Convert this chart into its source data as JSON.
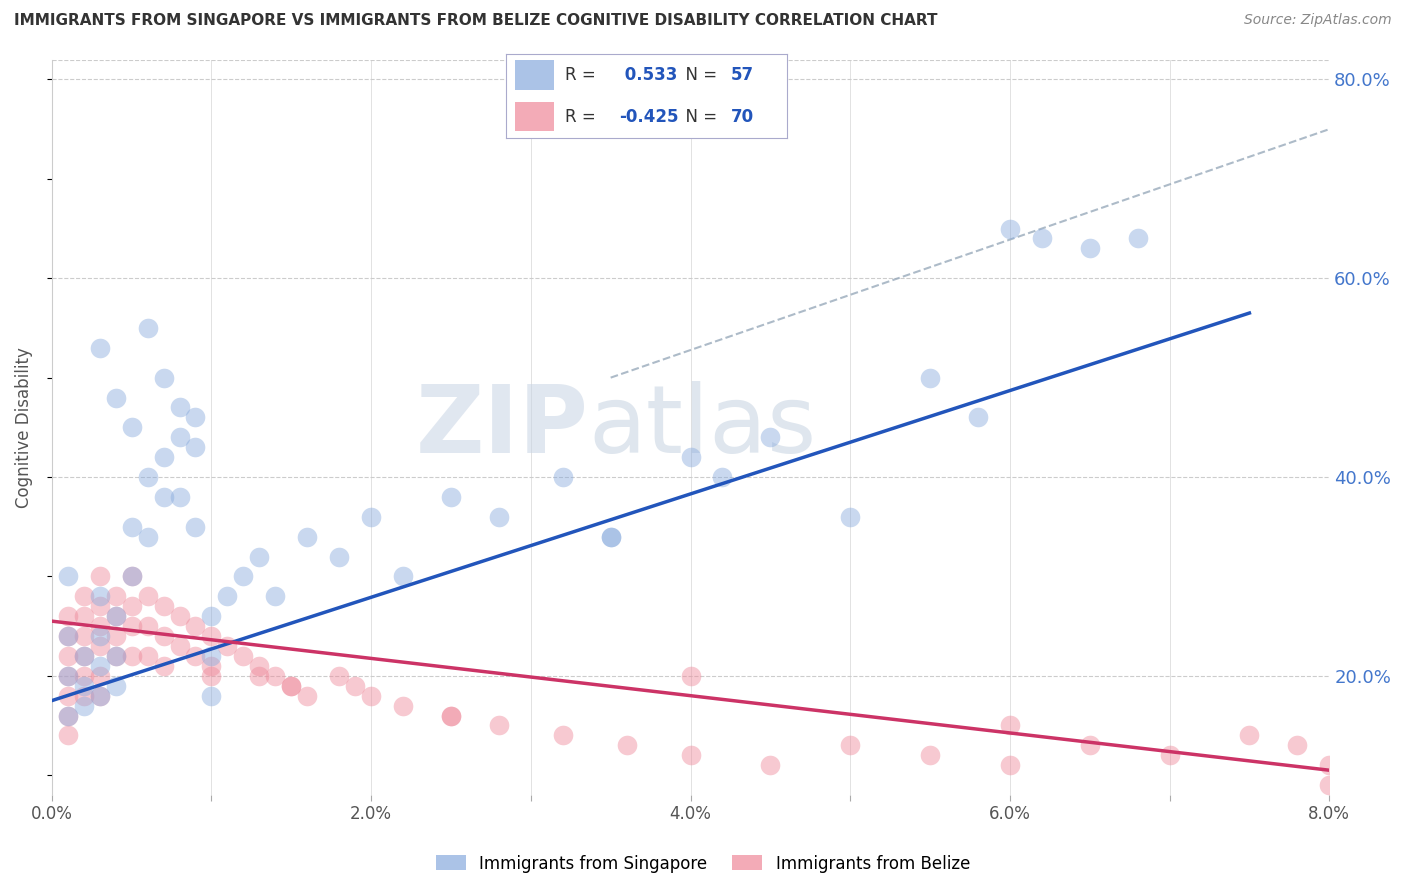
{
  "title": "IMMIGRANTS FROM SINGAPORE VS IMMIGRANTS FROM BELIZE COGNITIVE DISABILITY CORRELATION CHART",
  "source": "Source: ZipAtlas.com",
  "ylabel": "Cognitive Disability",
  "xlim": [
    0.0,
    0.08
  ],
  "ylim": [
    0.08,
    0.82
  ],
  "yticks": [
    0.2,
    0.4,
    0.6,
    0.8
  ],
  "yticklabels": [
    "20.0%",
    "40.0%",
    "60.0%",
    "80.0%"
  ],
  "xtick_vals": [
    0.0,
    0.01,
    0.02,
    0.03,
    0.04,
    0.05,
    0.06,
    0.07,
    0.08
  ],
  "xtick_labels": [
    "0.0%",
    "",
    "2.0%",
    "",
    "4.0%",
    "",
    "6.0%",
    "",
    "8.0%"
  ],
  "grid_color": "#cccccc",
  "background_color": "#ffffff",
  "singapore_color": "#88aadd",
  "belize_color": "#ee8899",
  "singapore_line_color": "#2255bb",
  "belize_line_color": "#cc3366",
  "dashed_line_color": "#99aabb",
  "singapore_R": 0.533,
  "singapore_N": 57,
  "belize_R": -0.425,
  "belize_N": 70,
  "legend_label_singapore": "Immigrants from Singapore",
  "legend_label_belize": "Immigrants from Belize",
  "watermark_zip": "ZIP",
  "watermark_atlas": "atlas",
  "sg_line_x0": 0.0,
  "sg_line_y0": 0.175,
  "sg_line_x1": 0.075,
  "sg_line_y1": 0.565,
  "bz_line_x0": 0.0,
  "bz_line_y0": 0.255,
  "bz_line_x1": 0.08,
  "bz_line_y1": 0.105,
  "dash_line_x0": 0.035,
  "dash_line_y0": 0.5,
  "dash_line_x1": 0.08,
  "dash_line_y1": 0.75,
  "singapore_x": [
    0.001,
    0.001,
    0.001,
    0.001,
    0.002,
    0.002,
    0.002,
    0.003,
    0.003,
    0.003,
    0.003,
    0.004,
    0.004,
    0.004,
    0.005,
    0.005,
    0.006,
    0.006,
    0.007,
    0.007,
    0.008,
    0.008,
    0.009,
    0.009,
    0.01,
    0.01,
    0.01,
    0.011,
    0.012,
    0.013,
    0.014,
    0.016,
    0.018,
    0.02,
    0.022,
    0.025,
    0.028,
    0.032,
    0.035,
    0.04,
    0.042,
    0.045,
    0.05,
    0.055,
    0.058,
    0.062,
    0.065,
    0.068,
    0.003,
    0.004,
    0.005,
    0.006,
    0.007,
    0.008,
    0.009,
    0.035,
    0.06
  ],
  "singapore_y": [
    0.3,
    0.24,
    0.2,
    0.16,
    0.22,
    0.19,
    0.17,
    0.28,
    0.24,
    0.21,
    0.18,
    0.26,
    0.22,
    0.19,
    0.35,
    0.3,
    0.4,
    0.34,
    0.42,
    0.38,
    0.44,
    0.38,
    0.46,
    0.35,
    0.26,
    0.22,
    0.18,
    0.28,
    0.3,
    0.32,
    0.28,
    0.34,
    0.32,
    0.36,
    0.3,
    0.38,
    0.36,
    0.4,
    0.34,
    0.42,
    0.4,
    0.44,
    0.36,
    0.5,
    0.46,
    0.64,
    0.63,
    0.64,
    0.53,
    0.48,
    0.45,
    0.55,
    0.5,
    0.47,
    0.43,
    0.34,
    0.65
  ],
  "belize_x": [
    0.001,
    0.001,
    0.001,
    0.001,
    0.001,
    0.001,
    0.001,
    0.002,
    0.002,
    0.002,
    0.002,
    0.002,
    0.002,
    0.003,
    0.003,
    0.003,
    0.003,
    0.003,
    0.003,
    0.004,
    0.004,
    0.004,
    0.004,
    0.005,
    0.005,
    0.005,
    0.005,
    0.006,
    0.006,
    0.006,
    0.007,
    0.007,
    0.007,
    0.008,
    0.008,
    0.009,
    0.009,
    0.01,
    0.01,
    0.011,
    0.012,
    0.013,
    0.014,
    0.015,
    0.016,
    0.018,
    0.019,
    0.02,
    0.022,
    0.025,
    0.028,
    0.032,
    0.036,
    0.04,
    0.045,
    0.05,
    0.055,
    0.06,
    0.065,
    0.07,
    0.075,
    0.078,
    0.08,
    0.08,
    0.06,
    0.04,
    0.025,
    0.015,
    0.013,
    0.01
  ],
  "belize_y": [
    0.26,
    0.24,
    0.22,
    0.2,
    0.18,
    0.16,
    0.14,
    0.28,
    0.26,
    0.24,
    0.22,
    0.2,
    0.18,
    0.3,
    0.27,
    0.25,
    0.23,
    0.2,
    0.18,
    0.28,
    0.26,
    0.24,
    0.22,
    0.3,
    0.27,
    0.25,
    0.22,
    0.28,
    0.25,
    0.22,
    0.27,
    0.24,
    0.21,
    0.26,
    0.23,
    0.25,
    0.22,
    0.24,
    0.2,
    0.23,
    0.22,
    0.21,
    0.2,
    0.19,
    0.18,
    0.2,
    0.19,
    0.18,
    0.17,
    0.16,
    0.15,
    0.14,
    0.13,
    0.12,
    0.11,
    0.13,
    0.12,
    0.11,
    0.13,
    0.12,
    0.14,
    0.13,
    0.09,
    0.11,
    0.15,
    0.2,
    0.16,
    0.19,
    0.2,
    0.21
  ]
}
